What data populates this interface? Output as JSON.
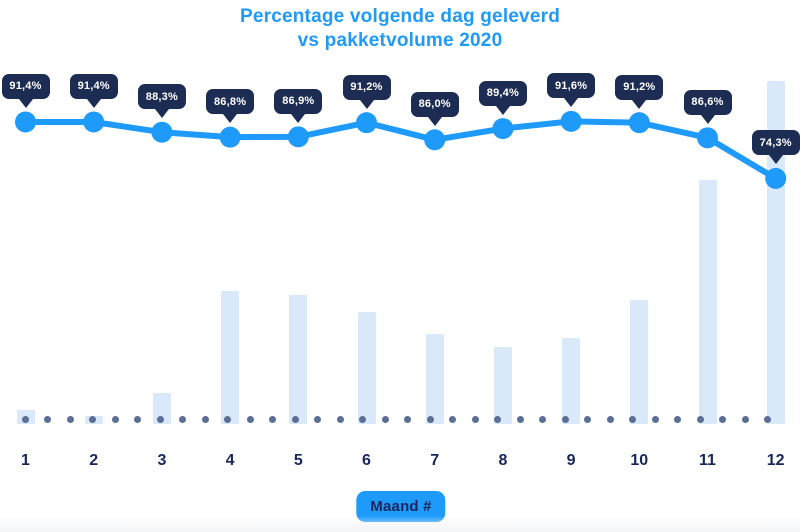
{
  "title": {
    "line1": "Percentage volgende dag geleverd",
    "line2": "vs pakketvolume 2020"
  },
  "xlabel_badge": "Maand #",
  "chart_data": {
    "type": "line+bar",
    "title": "Percentage volgende dag geleverd vs pakketvolume 2020",
    "categories": [
      "1",
      "2",
      "3",
      "4",
      "5",
      "6",
      "7",
      "8",
      "9",
      "10",
      "11",
      "12"
    ],
    "xlabel": "Maand #",
    "ylabel": "",
    "legend_position": "none",
    "grid": "dotted baseline only",
    "series": [
      {
        "name": "Percentage volgende dag geleverd",
        "type": "line",
        "unit": "%",
        "values": [
          91.4,
          91.4,
          88.3,
          86.8,
          86.9,
          91.2,
          86.0,
          89.4,
          91.6,
          91.2,
          86.6,
          74.3
        ],
        "point_labels": [
          "91,4%",
          "91,4%",
          "88,3%",
          "86,8%",
          "86,9%",
          "91,2%",
          "86,0%",
          "89,4%",
          "91,6%",
          "91,2%",
          "86,6%",
          "74,3%"
        ]
      },
      {
        "name": "Pakketvolume 2020",
        "type": "bar",
        "unit": "relative volume (no value axis shown, max month = 100)",
        "values": [
          4.1,
          2.3,
          9.0,
          38.8,
          37.6,
          32.7,
          26.2,
          22.4,
          25.1,
          36.2,
          71.1,
          100
        ]
      }
    ]
  },
  "colors": {
    "accent_blue": "#1E9AFB",
    "tooltip_navy": "#1D2C52",
    "bar_fill": "#DAE9F9",
    "baseline_dot": "#5B6E96",
    "label_navy": "#18265B",
    "tooltip_text": "#FFFFFF"
  }
}
